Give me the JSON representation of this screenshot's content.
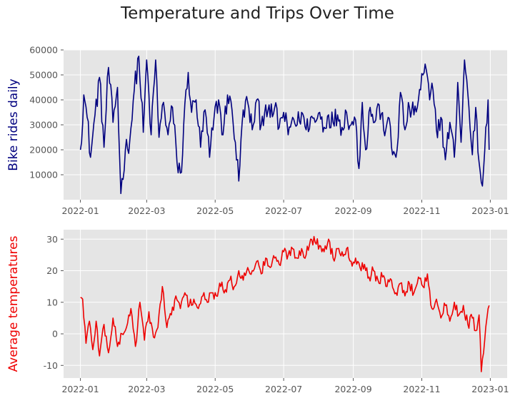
{
  "title": "Temperature and Trips Over Time",
  "chart_data": [
    {
      "type": "line",
      "ylabel": "Bike rides daily",
      "ylabel_color": "#00007f",
      "line_color": "#00007f",
      "x_start": "2022-01-01",
      "x_end": "2022-12-31",
      "xlim": [
        "2021-12-17",
        "2023-01-16"
      ],
      "ylim": [
        0,
        60000
      ],
      "x_ticks": [
        "2022-01",
        "2022-03",
        "2022-05",
        "2022-07",
        "2022-09",
        "2022-11",
        "2023-01"
      ],
      "y_ticks": [
        10000,
        20000,
        30000,
        40000,
        50000,
        60000
      ],
      "grid": true,
      "anchors": [
        [
          "2022-01-01",
          20000
        ],
        [
          "2022-01-04",
          42000
        ],
        [
          "2022-01-07",
          33000
        ],
        [
          "2022-01-10",
          17000
        ],
        [
          "2022-01-14",
          34000
        ],
        [
          "2022-01-18",
          49000
        ],
        [
          "2022-01-22",
          21000
        ],
        [
          "2022-01-26",
          53000
        ],
        [
          "2022-01-30",
          31000
        ],
        [
          "2022-02-03",
          45000
        ],
        [
          "2022-02-06",
          2500
        ],
        [
          "2022-02-10",
          20000
        ],
        [
          "2022-02-14",
          24000
        ],
        [
          "2022-02-18",
          44000
        ],
        [
          "2022-02-22",
          57500
        ],
        [
          "2022-02-26",
          27000
        ],
        [
          "2022-03-01",
          56000
        ],
        [
          "2022-03-05",
          26000
        ],
        [
          "2022-03-09",
          56000
        ],
        [
          "2022-03-12",
          25000
        ],
        [
          "2022-03-16",
          39000
        ],
        [
          "2022-03-20",
          26000
        ],
        [
          "2022-03-24",
          37000
        ],
        [
          "2022-03-28",
          15000
        ],
        [
          "2022-04-01",
          11000
        ],
        [
          "2022-04-05",
          44000
        ],
        [
          "2022-04-07",
          51000
        ],
        [
          "2022-04-10",
          35000
        ],
        [
          "2022-04-14",
          40000
        ],
        [
          "2022-04-18",
          21000
        ],
        [
          "2022-04-22",
          36000
        ],
        [
          "2022-04-26",
          17000
        ],
        [
          "2022-04-30",
          33000
        ],
        [
          "2022-05-04",
          40000
        ],
        [
          "2022-05-08",
          26000
        ],
        [
          "2022-05-12",
          42000
        ],
        [
          "2022-05-16",
          36000
        ],
        [
          "2022-05-19",
          23000
        ],
        [
          "2022-05-22",
          7500
        ],
        [
          "2022-05-26",
          36000
        ],
        [
          "2022-05-30",
          39000
        ],
        [
          "2022-06-03",
          28000
        ],
        [
          "2022-06-07",
          40000
        ],
        [
          "2022-06-11",
          30000
        ],
        [
          "2022-06-15",
          38000
        ],
        [
          "2022-06-19",
          33000
        ],
        [
          "2022-06-23",
          37000
        ],
        [
          "2022-06-27",
          29000
        ],
        [
          "2022-07-01",
          35000
        ],
        [
          "2022-07-05",
          26000
        ],
        [
          "2022-07-09",
          33000
        ],
        [
          "2022-07-13",
          30000
        ],
        [
          "2022-07-17",
          35000
        ],
        [
          "2022-07-21",
          28000
        ],
        [
          "2022-07-25",
          33000
        ],
        [
          "2022-07-29",
          31000
        ],
        [
          "2022-08-02",
          35000
        ],
        [
          "2022-08-06",
          29000
        ],
        [
          "2022-08-10",
          34000
        ],
        [
          "2022-08-14",
          31000
        ],
        [
          "2022-08-18",
          34000
        ],
        [
          "2022-08-22",
          29000
        ],
        [
          "2022-08-26",
          35000
        ],
        [
          "2022-08-30",
          30000
        ],
        [
          "2022-09-03",
          32000
        ],
        [
          "2022-09-06",
          12500
        ],
        [
          "2022-09-09",
          39000
        ],
        [
          "2022-09-12",
          20000
        ],
        [
          "2022-09-16",
          37000
        ],
        [
          "2022-09-20",
          31000
        ],
        [
          "2022-09-24",
          38000
        ],
        [
          "2022-09-28",
          28000
        ],
        [
          "2022-10-02",
          33000
        ],
        [
          "2022-10-06",
          18000
        ],
        [
          "2022-10-10",
          20000
        ],
        [
          "2022-10-13",
          43000
        ],
        [
          "2022-10-17",
          28000
        ],
        [
          "2022-10-21",
          37000
        ],
        [
          "2022-10-25",
          34000
        ],
        [
          "2022-10-29",
          40000
        ],
        [
          "2022-11-02",
          50000
        ],
        [
          "2022-11-05",
          52000
        ],
        [
          "2022-11-08",
          40000
        ],
        [
          "2022-11-11",
          44000
        ],
        [
          "2022-11-14",
          28000
        ],
        [
          "2022-11-18",
          33000
        ],
        [
          "2022-11-22",
          16000
        ],
        [
          "2022-11-26",
          31000
        ],
        [
          "2022-11-30",
          17000
        ],
        [
          "2022-12-03",
          47000
        ],
        [
          "2022-12-06",
          23000
        ],
        [
          "2022-12-09",
          56000
        ],
        [
          "2022-12-13",
          37000
        ],
        [
          "2022-12-16",
          18000
        ],
        [
          "2022-12-19",
          37000
        ],
        [
          "2022-12-22",
          15000
        ],
        [
          "2022-12-24",
          7000
        ],
        [
          "2022-12-25",
          5500
        ],
        [
          "2022-12-28",
          29000
        ],
        [
          "2022-12-30",
          40000
        ],
        [
          "2022-12-31",
          20000
        ]
      ],
      "noise_amplitude": 4500
    },
    {
      "type": "line",
      "ylabel": "Average temperatures",
      "ylabel_color": "#ee0000",
      "line_color": "#ee0000",
      "x_start": "2022-01-01",
      "x_end": "2022-12-31",
      "xlim": [
        "2021-12-17",
        "2023-01-16"
      ],
      "ylim": [
        -14,
        33
      ],
      "x_ticks": [
        "2022-01",
        "2022-03",
        "2022-05",
        "2022-07",
        "2022-09",
        "2022-11",
        "2023-01"
      ],
      "y_ticks": [
        -10,
        0,
        10,
        20,
        30
      ],
      "grid": true,
      "anchors": [
        [
          "2022-01-01",
          11.5
        ],
        [
          "2022-01-03",
          11
        ],
        [
          "2022-01-06",
          -3
        ],
        [
          "2022-01-09",
          4
        ],
        [
          "2022-01-12",
          -5
        ],
        [
          "2022-01-15",
          4
        ],
        [
          "2022-01-18",
          -7
        ],
        [
          "2022-01-22",
          3
        ],
        [
          "2022-01-26",
          -6
        ],
        [
          "2022-01-30",
          5
        ],
        [
          "2022-02-03",
          -4
        ],
        [
          "2022-02-07",
          0
        ],
        [
          "2022-02-11",
          2
        ],
        [
          "2022-02-15",
          8
        ],
        [
          "2022-02-19",
          -4
        ],
        [
          "2022-02-23",
          10
        ],
        [
          "2022-02-27",
          -2
        ],
        [
          "2022-03-03",
          7
        ],
        [
          "2022-03-07",
          -1
        ],
        [
          "2022-03-11",
          2
        ],
        [
          "2022-03-15",
          15
        ],
        [
          "2022-03-19",
          2
        ],
        [
          "2022-03-23",
          6
        ],
        [
          "2022-03-27",
          12
        ],
        [
          "2022-03-31",
          8
        ],
        [
          "2022-04-04",
          13
        ],
        [
          "2022-04-08",
          9
        ],
        [
          "2022-04-12",
          11
        ],
        [
          "2022-04-16",
          8
        ],
        [
          "2022-04-20",
          12
        ],
        [
          "2022-04-24",
          10
        ],
        [
          "2022-04-28",
          13
        ],
        [
          "2022-05-02",
          12
        ],
        [
          "2022-05-06",
          15
        ],
        [
          "2022-05-10",
          14
        ],
        [
          "2022-05-14",
          17
        ],
        [
          "2022-05-18",
          15
        ],
        [
          "2022-05-22",
          20
        ],
        [
          "2022-05-26",
          17
        ],
        [
          "2022-05-30",
          21
        ],
        [
          "2022-06-03",
          20
        ],
        [
          "2022-06-07",
          23
        ],
        [
          "2022-06-11",
          19
        ],
        [
          "2022-06-15",
          24
        ],
        [
          "2022-06-19",
          21
        ],
        [
          "2022-06-23",
          24
        ],
        [
          "2022-06-27",
          22
        ],
        [
          "2022-07-01",
          26
        ],
        [
          "2022-07-05",
          25
        ],
        [
          "2022-07-09",
          27
        ],
        [
          "2022-07-13",
          24
        ],
        [
          "2022-07-17",
          27
        ],
        [
          "2022-07-21",
          25
        ],
        [
          "2022-07-25",
          30
        ],
        [
          "2022-07-29",
          29
        ],
        [
          "2022-08-02",
          28
        ],
        [
          "2022-08-06",
          26
        ],
        [
          "2022-08-10",
          30
        ],
        [
          "2022-08-14",
          24
        ],
        [
          "2022-08-18",
          27
        ],
        [
          "2022-08-22",
          26
        ],
        [
          "2022-08-26",
          27
        ],
        [
          "2022-08-30",
          23
        ],
        [
          "2022-09-03",
          24
        ],
        [
          "2022-09-07",
          21
        ],
        [
          "2022-09-11",
          22
        ],
        [
          "2022-09-15",
          18
        ],
        [
          "2022-09-19",
          20
        ],
        [
          "2022-09-23",
          17
        ],
        [
          "2022-09-27",
          18
        ],
        [
          "2022-10-01",
          15
        ],
        [
          "2022-10-05",
          17
        ],
        [
          "2022-10-09",
          13
        ],
        [
          "2022-10-13",
          16
        ],
        [
          "2022-10-17",
          12
        ],
        [
          "2022-10-21",
          16
        ],
        [
          "2022-10-25",
          13
        ],
        [
          "2022-10-29",
          18
        ],
        [
          "2022-11-02",
          15
        ],
        [
          "2022-11-06",
          19
        ],
        [
          "2022-11-10",
          8
        ],
        [
          "2022-11-14",
          11
        ],
        [
          "2022-11-18",
          5
        ],
        [
          "2022-11-22",
          9
        ],
        [
          "2022-11-26",
          4
        ],
        [
          "2022-11-30",
          10
        ],
        [
          "2022-12-04",
          6
        ],
        [
          "2022-12-08",
          9
        ],
        [
          "2022-12-12",
          3
        ],
        [
          "2022-12-16",
          5
        ],
        [
          "2022-12-19",
          1
        ],
        [
          "2022-12-22",
          6
        ],
        [
          "2022-12-24",
          -12
        ],
        [
          "2022-12-26",
          -6
        ],
        [
          "2022-12-29",
          5
        ],
        [
          "2022-12-31",
          9
        ]
      ],
      "noise_amplitude": 1.8
    }
  ]
}
